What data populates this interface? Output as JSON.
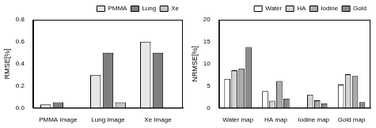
{
  "chart_data": [
    {
      "type": "bar",
      "ylabel": "RMSE[%]",
      "categories": [
        "PMMA Image",
        "Lung Image",
        "Xe Image"
      ],
      "series": [
        {
          "name": "PMMA",
          "color": "#e6e6e6",
          "values": [
            0.03,
            0.3,
            0.6
          ]
        },
        {
          "name": "Lung",
          "color": "#7f7f7f",
          "values": [
            0.05,
            0.5,
            0.5
          ]
        },
        {
          "name": "Xe",
          "color": "#c4c4c4",
          "values": [
            0,
            0.05,
            0
          ]
        }
      ],
      "ylim": [
        0,
        0.8
      ],
      "yticks": [
        {
          "value": 0,
          "label": "0.0"
        },
        {
          "value": 0.2,
          "label": "0.2"
        },
        {
          "value": 0.4,
          "label": "0.4"
        },
        {
          "value": 0.6,
          "label": "0.6"
        },
        {
          "value": 0.8,
          "label": "0.8"
        }
      ],
      "grid": false,
      "legend": "top-right"
    },
    {
      "type": "bar",
      "ylabel": "NRMSE[%]",
      "categories": [
        "Water map",
        "HA map",
        "Iodine map",
        "Gold map"
      ],
      "series": [
        {
          "name": "Water",
          "color": "#ffffff",
          "values": [
            6.6,
            3.8,
            0,
            5.3
          ]
        },
        {
          "name": "HA",
          "color": "#d4d4d4",
          "values": [
            8.5,
            1.6,
            3.0,
            7.6
          ]
        },
        {
          "name": "Iodine",
          "color": "#ababab",
          "values": [
            8.9,
            6.1,
            1.7,
            7.2
          ]
        },
        {
          "name": "Gold",
          "color": "#8a8a8a",
          "values": [
            13.8,
            2.1,
            1.0,
            1.3
          ]
        }
      ],
      "ylim": [
        0,
        20
      ],
      "yticks": [
        0,
        5,
        10,
        15,
        20
      ],
      "grid": false,
      "legend": "top-right"
    }
  ]
}
